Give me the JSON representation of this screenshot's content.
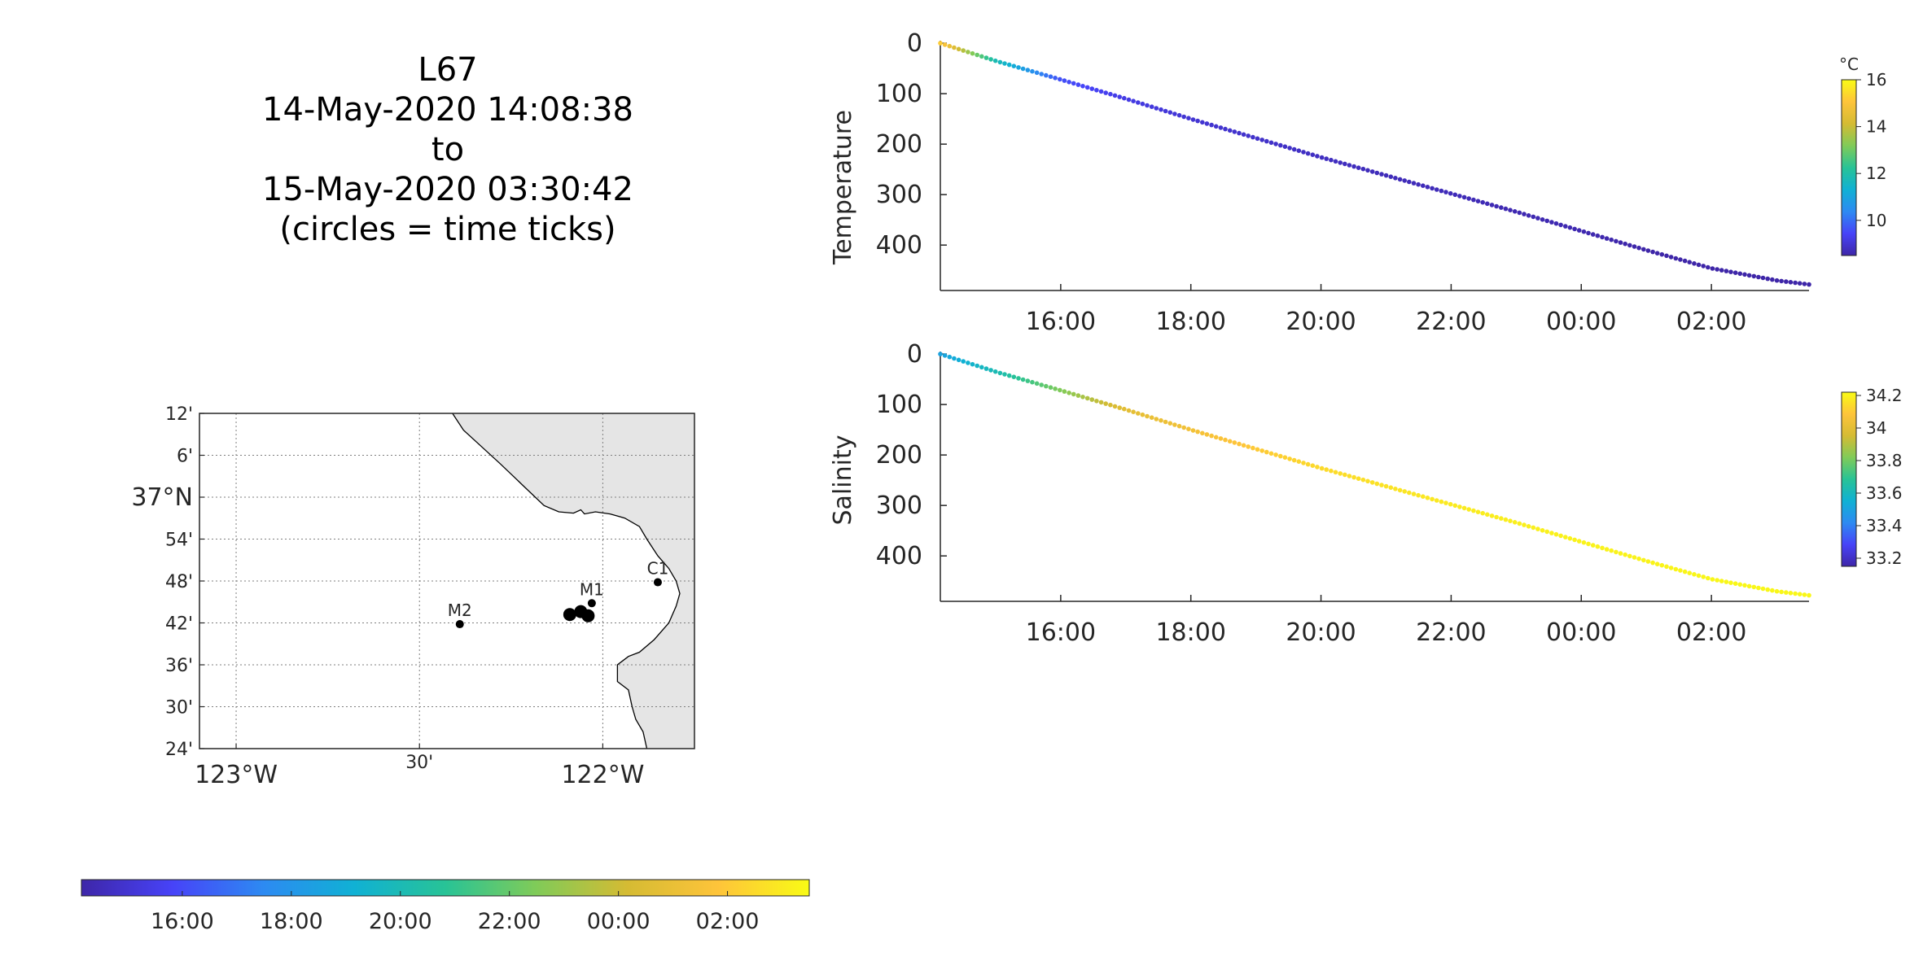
{
  "title_block": {
    "line1": "L67",
    "line2": "14-May-2020 14:08:38",
    "line3": "to",
    "line4": "15-May-2020 03:30:42",
    "line5": "(circles = time ticks)"
  },
  "colors": {
    "land": "#e5e5e5",
    "coastline": "#000000",
    "grid": "#7f7f7f",
    "axis": "#262626",
    "parula": [
      "#3e26a8",
      "#4743f8",
      "#2d8af2",
      "#10b1d4",
      "#28c396",
      "#80cb58",
      "#d5bb33",
      "#fec43a",
      "#f9fb15"
    ]
  },
  "chart_data": [
    {
      "id": "temperature",
      "type": "scatter",
      "ylabel": "Temperature",
      "y_reversed": true,
      "yticks": [
        0,
        100,
        200,
        300,
        400
      ],
      "ytick_labels": [
        "0",
        "100",
        "200",
        "300",
        "400"
      ],
      "ylim": [
        -5,
        490
      ],
      "xlim": [
        14.15,
        27.5
      ],
      "xticks": [
        16,
        18,
        20,
        22,
        24,
        26
      ],
      "xtick_labels": [
        "16:00",
        "18:00",
        "20:00",
        "22:00",
        "00:00",
        "02:00"
      ],
      "series": [
        {
          "x": [
            14.15,
            15.0,
            16.0,
            17.0,
            18.0,
            19.0,
            20.0,
            21.0,
            22.0,
            23.0,
            24.0,
            25.0,
            26.0,
            27.0,
            27.5
          ],
          "depth": [
            0,
            35,
            72,
            110,
            150,
            188,
            226,
            262,
            298,
            334,
            372,
            410,
            446,
            470,
            478
          ],
          "color_value": [
            15.2,
            11.8,
            9.6,
            9.2,
            9.0,
            8.9,
            8.8,
            8.7,
            8.7,
            8.6,
            8.6,
            8.5,
            8.5,
            8.5,
            8.5
          ]
        }
      ],
      "colorbar": {
        "unit": "°C",
        "range": [
          8.5,
          16
        ],
        "ticks": [
          10,
          12,
          14,
          16
        ],
        "tick_labels": [
          "10",
          "12",
          "14",
          "16"
        ]
      }
    },
    {
      "id": "salinity",
      "type": "scatter",
      "ylabel": "Salinity",
      "y_reversed": true,
      "yticks": [
        0,
        100,
        200,
        300,
        400
      ],
      "ytick_labels": [
        "0",
        "100",
        "200",
        "300",
        "400"
      ],
      "ylim": [
        -5,
        490
      ],
      "xlim": [
        14.15,
        27.5
      ],
      "xticks": [
        16,
        18,
        20,
        22,
        24,
        26
      ],
      "xtick_labels": [
        "16:00",
        "18:00",
        "20:00",
        "22:00",
        "00:00",
        "02:00"
      ],
      "series": [
        {
          "x": [
            14.15,
            15.0,
            16.0,
            17.0,
            18.0,
            19.0,
            20.0,
            21.0,
            22.0,
            23.0,
            24.0,
            25.0,
            26.0,
            27.0,
            27.5
          ],
          "depth": [
            0,
            35,
            72,
            110,
            150,
            188,
            226,
            262,
            298,
            334,
            372,
            410,
            446,
            470,
            478
          ],
          "color_value": [
            33.5,
            33.62,
            33.82,
            34.0,
            34.05,
            34.1,
            34.14,
            34.16,
            34.18,
            34.19,
            34.2,
            34.2,
            34.21,
            34.21,
            34.21
          ]
        }
      ],
      "colorbar": {
        "unit": "",
        "range": [
          33.15,
          34.22
        ],
        "ticks": [
          33.2,
          33.4,
          33.6,
          33.8,
          34.0,
          34.2
        ],
        "tick_labels": [
          "33.2",
          "33.4",
          "33.6",
          "33.8",
          "34",
          "34.2"
        ]
      }
    },
    {
      "id": "map",
      "type": "scatter",
      "xlim": [
        -123.1,
        -121.75
      ],
      "ylim": [
        36.4,
        37.2
      ],
      "lon_ticks": [
        -123.0,
        -122.5,
        -122.0
      ],
      "lon_tick_labels": [
        "123°W",
        "30'",
        "122°W"
      ],
      "lat_ticks": [
        36.4,
        36.5,
        36.6,
        36.7,
        36.8,
        36.9,
        37.0,
        37.1,
        37.2
      ],
      "lat_tick_labels": [
        "24'",
        "30'",
        "36'",
        "42'",
        "48'",
        "54'",
        "37°N",
        "6'",
        "12'"
      ],
      "grid": true,
      "stations": [
        {
          "label": "M2",
          "lon": -122.39,
          "lat": 36.697
        },
        {
          "label": "M1",
          "lon": -122.03,
          "lat": 36.747
        },
        {
          "label": "C1",
          "lon": -121.85,
          "lat": 36.797
        }
      ],
      "track": {
        "lon": [
          -122.09,
          -122.06,
          -122.04
        ],
        "lat": [
          36.72,
          36.727,
          36.717
        ]
      },
      "coastline": {
        "lon": [
          -122.41,
          -122.38,
          -122.33,
          -122.28,
          -122.22,
          -122.16,
          -122.12,
          -122.08,
          -122.06,
          -122.05,
          -122.02,
          -121.98,
          -121.94,
          -121.9,
          -121.88,
          -121.85,
          -121.82,
          -121.8,
          -121.79,
          -121.8,
          -121.82,
          -121.86,
          -121.9,
          -121.93,
          -121.96,
          -121.96,
          -121.93,
          -121.92,
          -121.91,
          -121.89,
          -121.88
        ],
        "lat": [
          37.2,
          37.16,
          37.12,
          37.08,
          37.03,
          36.98,
          36.965,
          36.962,
          36.97,
          36.96,
          36.965,
          36.96,
          36.95,
          36.93,
          36.9,
          36.86,
          36.83,
          36.8,
          36.77,
          36.74,
          36.7,
          36.66,
          36.63,
          36.62,
          36.6,
          36.56,
          36.54,
          36.5,
          36.47,
          36.44,
          36.4
        ]
      }
    },
    {
      "id": "time_colorbar",
      "type": "heatmap",
      "range": [
        14.15,
        27.5
      ],
      "ticks": [
        16,
        18,
        20,
        22,
        24,
        26
      ],
      "tick_labels": [
        "16:00",
        "18:00",
        "20:00",
        "22:00",
        "00:00",
        "02:00"
      ]
    }
  ]
}
